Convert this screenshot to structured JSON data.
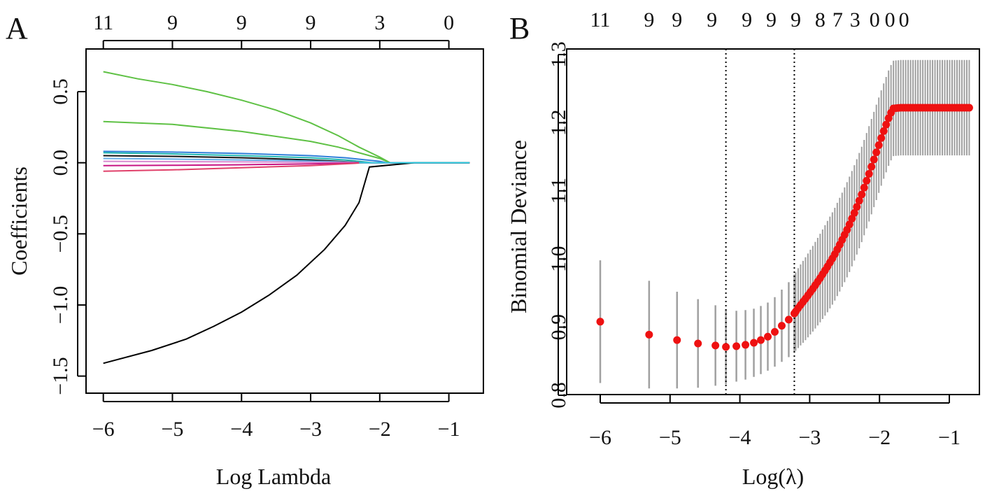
{
  "chart_data": [
    {
      "panel_label": "A",
      "type": "line",
      "xlabel": "Log Lambda",
      "ylabel": "Coefficients",
      "xlim": [
        -6.25,
        -0.5
      ],
      "ylim": [
        -1.62,
        0.8
      ],
      "xticks": [
        -6,
        -5,
        -4,
        -3,
        -2,
        -1
      ],
      "xtick_labels": [
        "−6",
        "−5",
        "−4",
        "−3",
        "−2",
        "−1"
      ],
      "yticks": [
        -1.5,
        -1.0,
        -0.5,
        0.0,
        0.5
      ],
      "ytick_labels": [
        "−1.5",
        "−1.0",
        "−0.5",
        "0.0",
        "0.5"
      ],
      "top_ticks": [
        -6,
        -5,
        -4,
        -3,
        -2,
        -1
      ],
      "top_labels": [
        "11",
        "9",
        "9",
        "9",
        "3",
        "0"
      ],
      "series": [
        {
          "name": "coef-green-1",
          "color": "#5ec144",
          "x": [
            -6.0,
            -5.5,
            -5.0,
            -4.5,
            -4.0,
            -3.5,
            -3.0,
            -2.6,
            -2.3,
            -2.0,
            -1.85,
            -1.5,
            -1.0,
            -0.7
          ],
          "values": [
            0.64,
            0.59,
            0.55,
            0.5,
            0.44,
            0.37,
            0.28,
            0.19,
            0.11,
            0.04,
            0.0,
            0.0,
            0.0,
            0.0
          ]
        },
        {
          "name": "coef-green-2",
          "color": "#5ec144",
          "x": [
            -6.0,
            -5.0,
            -4.0,
            -3.0,
            -2.6,
            -2.3,
            -2.0,
            -1.85,
            -1.5,
            -1.0,
            -0.7
          ],
          "values": [
            0.29,
            0.27,
            0.22,
            0.15,
            0.11,
            0.07,
            0.03,
            0.0,
            0.0,
            0.0,
            0.0
          ]
        },
        {
          "name": "coef-blue",
          "color": "#2f7fd9",
          "x": [
            -6.0,
            -5.0,
            -4.0,
            -3.0,
            -2.5,
            -2.0,
            -1.9,
            -1.5,
            -1.0,
            -0.7
          ],
          "values": [
            0.08,
            0.075,
            0.065,
            0.05,
            0.035,
            0.01,
            0.0,
            0.0,
            0.0,
            0.0
          ]
        },
        {
          "name": "coef-teal",
          "color": "#22b8b0",
          "x": [
            -6.0,
            -5.0,
            -4.0,
            -3.0,
            -2.5,
            -2.1,
            -1.5,
            -1.0,
            -0.7
          ],
          "values": [
            0.07,
            0.062,
            0.05,
            0.035,
            0.02,
            0.0,
            0.0,
            0.0,
            0.0
          ]
        },
        {
          "name": "coef-black-small",
          "color": "#111111",
          "x": [
            -6.0,
            -5.0,
            -4.0,
            -3.0,
            -2.2,
            -1.5,
            -1.0,
            -0.7
          ],
          "values": [
            0.05,
            0.045,
            0.035,
            0.02,
            0.0,
            0.0,
            0.0,
            0.0
          ]
        },
        {
          "name": "coef-lightblue",
          "color": "#69aee8",
          "x": [
            -6.0,
            -5.0,
            -4.0,
            -3.0,
            -2.2,
            -1.5,
            -1.0,
            -0.7
          ],
          "values": [
            0.03,
            0.026,
            0.02,
            0.012,
            0.0,
            0.0,
            0.0,
            0.0
          ]
        },
        {
          "name": "coef-pink",
          "color": "#d98ad0",
          "x": [
            -6.0,
            -5.0,
            -4.0,
            -3.0,
            -2.2,
            -1.5,
            -1.0,
            -0.7
          ],
          "values": [
            0.01,
            0.008,
            0.006,
            0.003,
            0.0,
            0.0,
            0.0,
            0.0
          ]
        },
        {
          "name": "coef-magenta",
          "color": "#c71585",
          "x": [
            -6.0,
            -5.0,
            -4.0,
            -3.0,
            -2.2,
            -1.5,
            -1.0,
            -0.7
          ],
          "values": [
            -0.02,
            -0.018,
            -0.014,
            -0.008,
            0.0,
            0.0,
            0.0,
            0.0
          ]
        },
        {
          "name": "coef-red",
          "color": "#e0406a",
          "x": [
            -6.0,
            -5.0,
            -4.0,
            -3.0,
            -2.2,
            -1.5,
            -1.0,
            -0.7
          ],
          "values": [
            -0.06,
            -0.05,
            -0.035,
            -0.02,
            0.0,
            0.0,
            0.0,
            0.0
          ]
        },
        {
          "name": "coef-black-large",
          "color": "#000000",
          "x": [
            -6.0,
            -5.3,
            -4.8,
            -4.4,
            -4.0,
            -3.6,
            -3.2,
            -2.8,
            -2.5,
            -2.3,
            -2.15,
            -1.5,
            -1.0,
            -0.7
          ],
          "values": [
            -1.41,
            -1.32,
            -1.24,
            -1.15,
            -1.05,
            -0.93,
            -0.79,
            -0.61,
            -0.44,
            -0.28,
            -0.03,
            0.0,
            0.0,
            0.0
          ]
        },
        {
          "name": "coef-cyan",
          "color": "#2fd4e8",
          "x": [
            -2.3,
            -1.5,
            -1.0,
            -0.7
          ],
          "values": [
            0.0,
            0.0,
            0.0,
            0.0
          ]
        }
      ]
    },
    {
      "panel_label": "B",
      "type": "scatter",
      "xlabel": "Log(λ)",
      "ylabel": "Binomial Deviance",
      "xlim": [
        -6.15,
        -0.7
      ],
      "ylim": [
        0.8,
        1.3
      ],
      "xticks": [
        -6,
        -5,
        -4,
        -3,
        -2,
        -1
      ],
      "xtick_labels": [
        "−6",
        "−5",
        "−4",
        "−3",
        "−2",
        "−1"
      ],
      "yticks": [
        0.8,
        0.9,
        1.0,
        1.1,
        1.2,
        1.3
      ],
      "ytick_labels": [
        "0.8",
        "0.9",
        "1.0",
        "1.1",
        "1.2",
        "1.3"
      ],
      "top_ticks": [
        -6.0,
        -5.3,
        -4.9,
        -4.4,
        -3.9,
        -3.55,
        -3.2,
        -2.85,
        -2.6,
        -2.35,
        -2.07,
        -1.85,
        -1.65
      ],
      "top_labels": [
        "11",
        "9",
        "9",
        "9",
        "9",
        "9",
        "9",
        "8",
        "7",
        "3",
        "0",
        "0",
        "0"
      ],
      "vlines": [
        -4.2,
        -3.22
      ],
      "point_color": "#ee1111",
      "errorbar_color": "#a0a0a0",
      "x": [
        -6.0,
        -5.3,
        -4.9,
        -4.6,
        -4.35,
        -4.2,
        -4.05,
        -3.92,
        -3.8,
        -3.7,
        -3.6,
        -3.5,
        -3.4,
        -3.3,
        -3.22,
        -3.15,
        -3.05,
        -2.95,
        -2.85,
        -2.75,
        -2.65,
        -2.55,
        -2.45,
        -2.35,
        -2.25,
        -2.15,
        -2.05,
        -1.95,
        -1.85,
        -1.8,
        -1.7,
        -1.5,
        -1.3,
        -1.1,
        -0.9,
        -0.7
      ],
      "y": [
        0.908,
        0.889,
        0.881,
        0.876,
        0.873,
        0.871,
        0.872,
        0.874,
        0.877,
        0.881,
        0.886,
        0.893,
        0.902,
        0.911,
        0.92,
        0.93,
        0.943,
        0.957,
        0.972,
        0.988,
        1.005,
        1.025,
        1.046,
        1.07,
        1.096,
        1.125,
        1.155,
        1.185,
        1.212,
        1.221,
        1.222,
        1.222,
        1.222,
        1.222,
        1.222,
        1.222
      ],
      "se": [
        0.09,
        0.079,
        0.071,
        0.065,
        0.059,
        0.055,
        0.052,
        0.051,
        0.05,
        0.05,
        0.05,
        0.051,
        0.053,
        0.055,
        0.057,
        0.059,
        0.061,
        0.063,
        0.065,
        0.067,
        0.068,
        0.069,
        0.07,
        0.07,
        0.07,
        0.07,
        0.07,
        0.07,
        0.07,
        0.07,
        0.07,
        0.07,
        0.07,
        0.07,
        0.07,
        0.07
      ]
    }
  ]
}
